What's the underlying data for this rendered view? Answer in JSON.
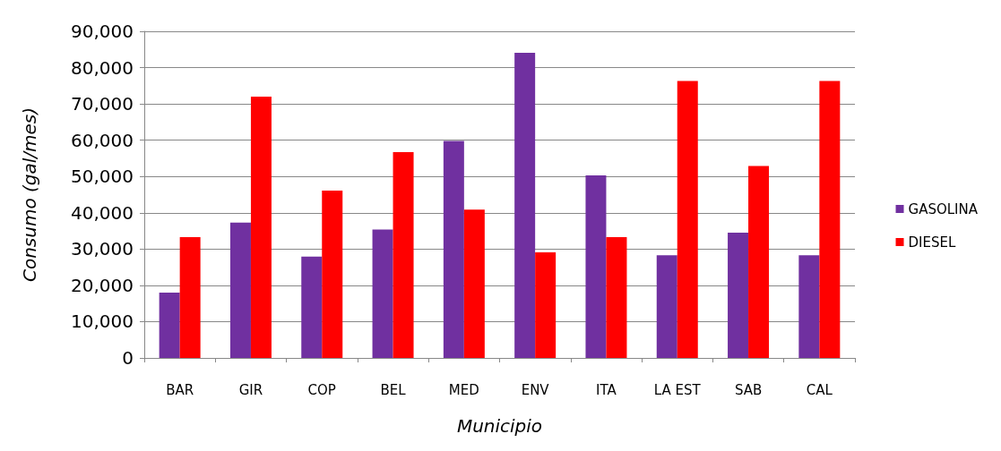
{
  "chart_data": {
    "type": "bar",
    "xlabel": "Municipio",
    "ylabel": "Consumo (gal/mes)",
    "categories": [
      "BAR",
      "GIR",
      "COP",
      "BEL",
      "MED",
      "ENV",
      "ITA",
      "LA EST",
      "SAB",
      "CAL"
    ],
    "series": [
      {
        "name": "GASOLINA",
        "color": "#7030a0",
        "values": [
          18000,
          37300,
          27900,
          35400,
          59800,
          84100,
          50300,
          28300,
          34500,
          28300
        ]
      },
      {
        "name": "DIESEL",
        "color": "#ff0000",
        "values": [
          33300,
          72000,
          46100,
          56700,
          40900,
          29100,
          33300,
          76300,
          52900,
          76300
        ]
      }
    ],
    "ylim": [
      0,
      90000
    ],
    "yticks": [
      {
        "value": 0,
        "label": "0"
      },
      {
        "value": 10000,
        "label": "10,000"
      },
      {
        "value": 20000,
        "label": "20,000"
      },
      {
        "value": 30000,
        "label": "30,000"
      },
      {
        "value": 40000,
        "label": "40,000"
      },
      {
        "value": 50000,
        "label": "50,000"
      },
      {
        "value": 60000,
        "label": "60,000"
      },
      {
        "value": 70000,
        "label": "70,000"
      },
      {
        "value": 80000,
        "label": "80,000"
      },
      {
        "value": 90000,
        "label": "90,000"
      }
    ],
    "grid": "y",
    "legend": "right"
  }
}
